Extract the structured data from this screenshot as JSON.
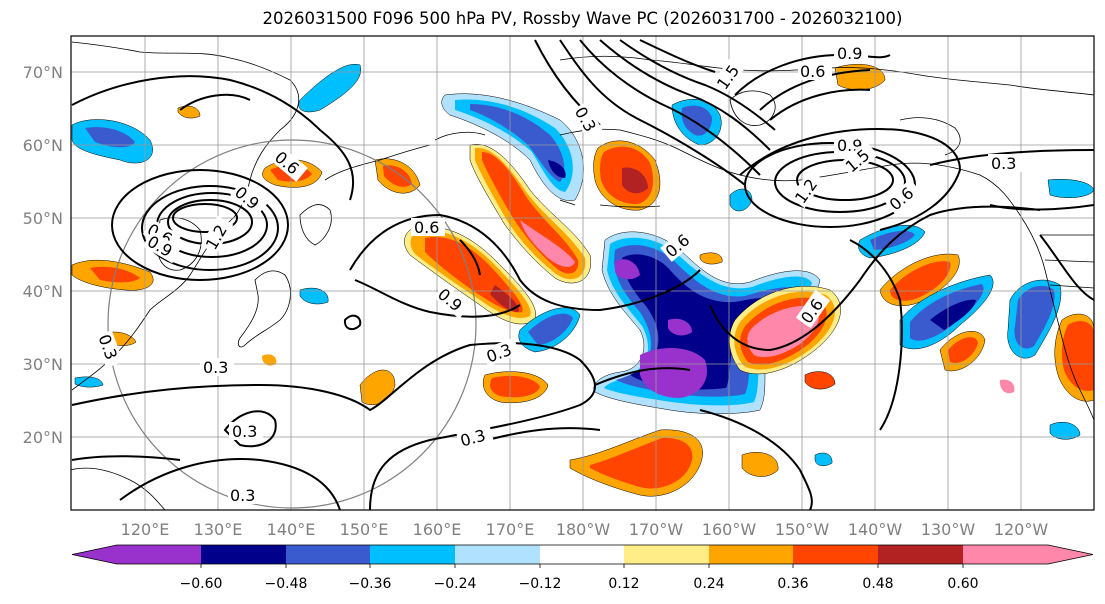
{
  "title": "2026031500 F096 500 hPa PV, Rossby Wave PC (2026031700 - 2026032100)",
  "lat_labels": [
    "70°N",
    "60°N",
    "50°N",
    "40°N",
    "30°N",
    "20°N"
  ],
  "lon_labels": [
    "120°E",
    "130°E",
    "140°E",
    "150°E",
    "160°E",
    "170°E",
    "180°W",
    "170°W",
    "160°W",
    "150°W",
    "140°W",
    "130°W",
    "120°W"
  ],
  "contour_labels": [
    "0.9",
    "0.6",
    "1.5",
    "0.3",
    "0.9",
    "1.5",
    "1.2",
    "0.6",
    "0.3",
    "0.6",
    "0.9",
    "0.6",
    "0.9",
    "0.3",
    "0.3",
    "0.3",
    "0.3",
    "0.3",
    "0.6",
    "0.6",
    "0.3",
    "0.6",
    "1.2",
    "0.9"
  ],
  "colorbar": {
    "ticks": [
      "−0.60",
      "−0.48",
      "−0.36",
      "−0.24",
      "−0.12",
      "0.12",
      "0.24",
      "0.36",
      "0.48",
      "0.60"
    ],
    "colors": [
      "#9932cc",
      "#00008b",
      "#3a5bcd",
      "#00bfff",
      "#b0e2ff",
      "#ffffff",
      "#ffee88",
      "#ffa500",
      "#ff4500",
      "#b22222",
      "#ff88aa"
    ]
  },
  "palette": {
    "neg_strong": "#9932cc",
    "neg_navy": "#00008b",
    "neg_royal": "#3a5bcd",
    "neg_sky": "#00bfff",
    "neg_pale": "#b0e2ff",
    "pos_yellow": "#ffee88",
    "pos_orange": "#ffa500",
    "pos_red": "#ff4500",
    "pos_dark": "#b22222",
    "pos_pink": "#ff88aa"
  }
}
